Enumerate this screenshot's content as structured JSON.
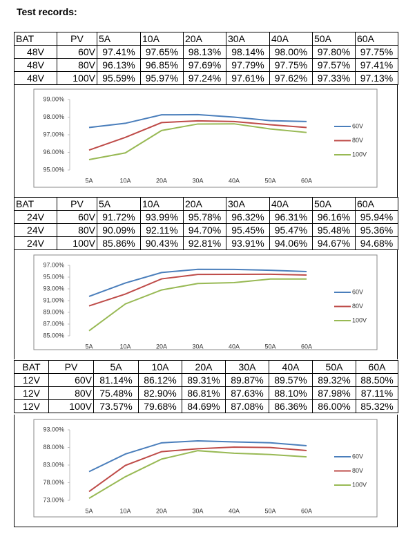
{
  "title": "Test records:",
  "tables": [
    {
      "header": [
        "BAT",
        "PV",
        "5A",
        "10A",
        "20A",
        "30A",
        "40A",
        "50A",
        "60A"
      ],
      "rows": [
        [
          "48V",
          "60V",
          "97.41%",
          "97.65%",
          "98.13%",
          "98.14%",
          "98.00%",
          "97.80%",
          "97.75%"
        ],
        [
          "48V",
          "80V",
          "96.13%",
          "96.85%",
          "97.69%",
          "97.79%",
          "97.75%",
          "97.57%",
          "97.41%"
        ],
        [
          "48V",
          "100V",
          "95.59%",
          "95.97%",
          "97.24%",
          "97.61%",
          "97.62%",
          "97.33%",
          "97.13%"
        ]
      ]
    },
    {
      "header": [
        "BAT",
        "PV",
        "5A",
        "10A",
        "20A",
        "30A",
        "40A",
        "50A",
        "60A"
      ],
      "rows": [
        [
          "24V",
          "60V",
          "91.72%",
          "93.99%",
          "95.78%",
          "96.32%",
          "96.31%",
          "96.16%",
          "95.94%"
        ],
        [
          "24V",
          "80V",
          "90.09%",
          "92.11%",
          "94.70%",
          "95.45%",
          "95.47%",
          "95.48%",
          "95.36%"
        ],
        [
          "24V",
          "100V",
          "85.86%",
          "90.43%",
          "92.81%",
          "93.91%",
          "94.06%",
          "94.67%",
          "94.68%"
        ]
      ]
    },
    {
      "header": [
        "BAT",
        "PV",
        "5A",
        "10A",
        "20A",
        "30A",
        "40A",
        "50A",
        "60A"
      ],
      "rows": [
        [
          "12V",
          "60V",
          "81.14%",
          "86.12%",
          "89.31%",
          "89.87%",
          "89.57%",
          "89.32%",
          "88.50%"
        ],
        [
          "12V",
          "80V",
          "75.48%",
          "82.90%",
          "86.81%",
          "87.63%",
          "88.10%",
          "87.98%",
          "87.11%"
        ],
        [
          "12V",
          "100V",
          "73.57%",
          "79.68%",
          "84.69%",
          "87.08%",
          "86.36%",
          "86.00%",
          "85.32%"
        ]
      ]
    }
  ],
  "chart_data": [
    {
      "type": "line",
      "categories": [
        "5A",
        "10A",
        "20A",
        "30A",
        "40A",
        "50A",
        "60A"
      ],
      "series": [
        {
          "name": "60V",
          "color": "#4a7ebb",
          "values": [
            97.41,
            97.65,
            98.13,
            98.14,
            98.0,
            97.8,
            97.75
          ]
        },
        {
          "name": "80V",
          "color": "#be4b48",
          "values": [
            96.13,
            96.85,
            97.69,
            97.79,
            97.75,
            97.57,
            97.41
          ]
        },
        {
          "name": "100V",
          "color": "#98b954",
          "values": [
            95.59,
            95.97,
            97.24,
            97.61,
            97.62,
            97.33,
            97.13
          ]
        }
      ],
      "ylim": [
        95,
        99
      ],
      "yticks": [
        {
          "value": 95,
          "label": "95.00%"
        },
        {
          "value": 96,
          "label": "96.00%"
        },
        {
          "value": 97,
          "label": "97.00%"
        },
        {
          "value": 98,
          "label": "98.00%"
        },
        {
          "value": 99,
          "label": "99.00%"
        }
      ],
      "grid": false,
      "legend": "right"
    },
    {
      "type": "line",
      "categories": [
        "5A",
        "10A",
        "20A",
        "30A",
        "40A",
        "50A",
        "60A"
      ],
      "series": [
        {
          "name": "60V",
          "color": "#4a7ebb",
          "values": [
            91.72,
            93.99,
            95.78,
            96.32,
            96.31,
            96.16,
            95.94
          ]
        },
        {
          "name": "80V",
          "color": "#be4b48",
          "values": [
            90.09,
            92.11,
            94.7,
            95.45,
            95.47,
            95.48,
            95.36
          ]
        },
        {
          "name": "100V",
          "color": "#98b954",
          "values": [
            85.86,
            90.43,
            92.81,
            93.91,
            94.06,
            94.67,
            94.68
          ]
        }
      ],
      "ylim": [
        85,
        97
      ],
      "yticks": [
        {
          "value": 85,
          "label": "85.00%"
        },
        {
          "value": 87,
          "label": "87.00%"
        },
        {
          "value": 89,
          "label": "89.00%"
        },
        {
          "value": 91,
          "label": "91.00%"
        },
        {
          "value": 93,
          "label": "93.00%"
        },
        {
          "value": 95,
          "label": "95.00%"
        },
        {
          "value": 97,
          "label": "97.00%"
        }
      ],
      "grid": false,
      "legend": "right"
    },
    {
      "type": "line",
      "categories": [
        "5A",
        "10A",
        "20A",
        "30A",
        "40A",
        "50A",
        "60A"
      ],
      "series": [
        {
          "name": "60V",
          "color": "#4a7ebb",
          "values": [
            81.14,
            86.12,
            89.31,
            89.87,
            89.57,
            89.32,
            88.5
          ]
        },
        {
          "name": "80V",
          "color": "#be4b48",
          "values": [
            75.48,
            82.9,
            86.81,
            87.63,
            88.1,
            87.98,
            87.11
          ]
        },
        {
          "name": "100V",
          "color": "#98b954",
          "values": [
            73.57,
            79.68,
            84.69,
            87.08,
            86.36,
            86.0,
            85.32
          ]
        }
      ],
      "ylim": [
        73,
        93
      ],
      "yticks": [
        {
          "value": 73,
          "label": "73.00%"
        },
        {
          "value": 78,
          "label": "78.00%"
        },
        {
          "value": 83,
          "label": "83.00%"
        },
        {
          "value": 88,
          "label": "88.00%"
        },
        {
          "value": 93,
          "label": "93.00%"
        }
      ],
      "grid": false,
      "legend": "right"
    }
  ]
}
